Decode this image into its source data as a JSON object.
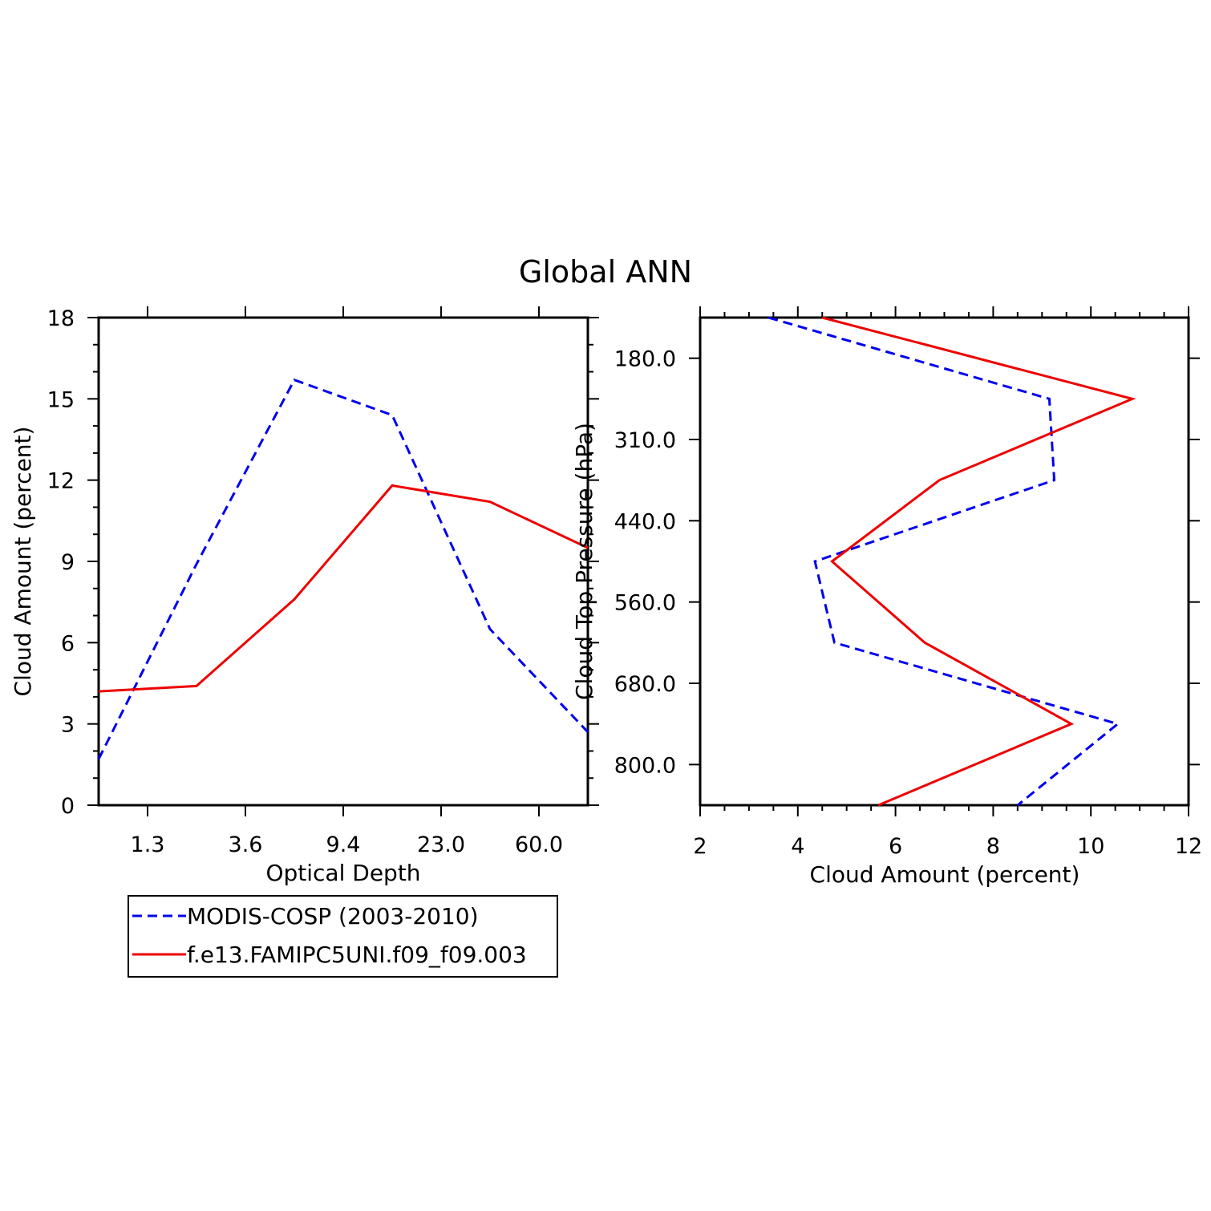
{
  "title": "Global ANN",
  "colors": {
    "obs": "#0000ee",
    "model": "#ee0000"
  },
  "legend": {
    "items": [
      {
        "label": "MODIS-COSP (2003-2010)",
        "style": "dashed",
        "color": "#0000ee"
      },
      {
        "label": "f.e13.FAMIPC5UNI.f09_f09.003",
        "style": "solid",
        "color": "#ee0000"
      }
    ]
  },
  "chart_data": [
    {
      "type": "line",
      "xlabel": "Optical Depth",
      "ylabel": "Cloud Amount (percent)",
      "x_tick_labels": [
        "1.3",
        "3.6",
        "9.4",
        "23.0",
        "60.0"
      ],
      "x_bins": 6,
      "ylim": [
        0,
        18
      ],
      "y_ticks": [
        0,
        3,
        6,
        9,
        12,
        15,
        18
      ],
      "series": [
        {
          "name": "MODIS-COSP (2003-2010)",
          "style": "dashed",
          "color": "#0000ee",
          "values": [
            1.7,
            8.9,
            15.7,
            14.4,
            6.5,
            2.7
          ]
        },
        {
          "name": "f.e13.FAMIPC5UNI.f09_f09.003",
          "style": "solid",
          "color": "#ee0000",
          "values": [
            4.2,
            4.4,
            7.6,
            11.8,
            11.2,
            9.5
          ]
        }
      ]
    },
    {
      "type": "line",
      "xlabel": "Cloud Amount (percent)",
      "ylabel": "Cloud Top Pressure (hPa)",
      "xlim": [
        2,
        12
      ],
      "x_ticks": [
        2,
        4,
        6,
        8,
        10,
        12
      ],
      "y_tick_labels": [
        "180.0",
        "310.0",
        "440.0",
        "560.0",
        "680.0",
        "800.0"
      ],
      "y_levels": 7,
      "series": [
        {
          "name": "MODIS-COSP (2003-2010)",
          "style": "dashed",
          "color": "#0000ee",
          "values": [
            3.4,
            9.15,
            9.25,
            4.35,
            4.75,
            10.55,
            8.5
          ]
        },
        {
          "name": "f.e13.FAMIPC5UNI.f09_f09.003",
          "style": "solid",
          "color": "#ee0000",
          "values": [
            4.5,
            10.85,
            6.9,
            4.7,
            6.6,
            9.6,
            5.65
          ]
        }
      ]
    }
  ]
}
